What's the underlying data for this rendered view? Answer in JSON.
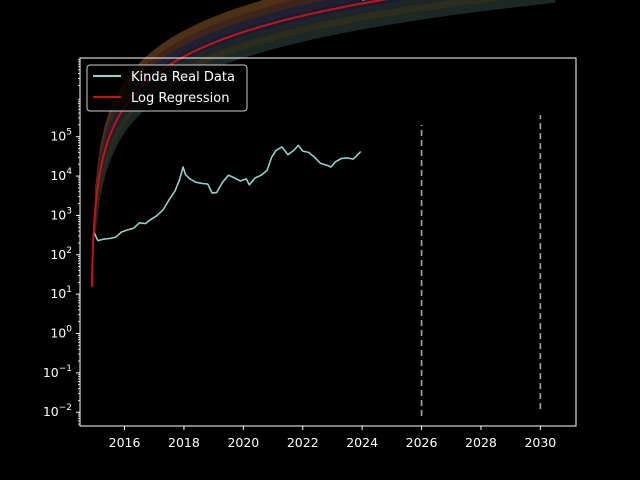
{
  "chart_data": {
    "type": "line",
    "title": "",
    "xlabel": "",
    "ylabel": "",
    "y_scale": "log",
    "xlim": [
      2014.5,
      2031.2
    ],
    "ylim_log10": [
      -2.35,
      7.0
    ],
    "grid": false,
    "legend": "upper-left",
    "background": "#000000",
    "x_ticks": [
      {
        "value": 2016,
        "label": "2016"
      },
      {
        "value": 2018,
        "label": "2018"
      },
      {
        "value": 2020,
        "label": "2020"
      },
      {
        "value": 2022,
        "label": "2022"
      },
      {
        "value": 2024,
        "label": "2024"
      },
      {
        "value": 2026,
        "label": "2026"
      },
      {
        "value": 2028,
        "label": "2028"
      },
      {
        "value": 2030,
        "label": "2030"
      }
    ],
    "y_ticks": [
      {
        "exp": -2,
        "base": "10",
        "sup": "−2"
      },
      {
        "exp": -1,
        "base": "10",
        "sup": "−1"
      },
      {
        "exp": 0,
        "base": "10",
        "sup": "0"
      },
      {
        "exp": 1,
        "base": "10",
        "sup": "1"
      },
      {
        "exp": 2,
        "base": "10",
        "sup": "2"
      },
      {
        "exp": 3,
        "base": "10",
        "sup": "3"
      },
      {
        "exp": 4,
        "base": "10",
        "sup": "4"
      },
      {
        "exp": 5,
        "base": "10",
        "sup": "5"
      }
    ],
    "vlines": [
      {
        "x": 2026,
        "ymin": 0.008,
        "ymax": 200000,
        "color": "#aaaaaa"
      },
      {
        "x": 2030,
        "ymin": 0.012,
        "ymax": 350000,
        "color": "#aaaaaa"
      }
    ],
    "series": [
      {
        "name": "Kinda Real Data",
        "color": "#8dd3c7",
        "x": [
          2014.95,
          2015.1,
          2015.3,
          2015.5,
          2015.7,
          2015.9,
          2016.1,
          2016.3,
          2016.5,
          2016.7,
          2016.9,
          2017.1,
          2017.3,
          2017.5,
          2017.7,
          2017.85,
          2017.97,
          2018.05,
          2018.2,
          2018.4,
          2018.6,
          2018.8,
          2018.95,
          2019.1,
          2019.3,
          2019.5,
          2019.7,
          2019.9,
          2020.1,
          2020.2,
          2020.4,
          2020.6,
          2020.8,
          2020.95,
          2021.1,
          2021.3,
          2021.5,
          2021.7,
          2021.85,
          2022.0,
          2022.2,
          2022.4,
          2022.6,
          2022.8,
          2022.95,
          2023.1,
          2023.3,
          2023.5,
          2023.7,
          2023.85,
          2023.95
        ],
        "y": [
          400,
          230,
          250,
          260,
          280,
          380,
          430,
          470,
          650,
          620,
          800,
          1000,
          1400,
          2500,
          4200,
          8000,
          17000,
          11000,
          8500,
          7000,
          6500,
          6300,
          3700,
          3800,
          7000,
          10500,
          9000,
          7500,
          8500,
          6000,
          9000,
          10500,
          14000,
          30000,
          45000,
          55000,
          35000,
          45000,
          60000,
          43000,
          40000,
          30000,
          21000,
          19000,
          17000,
          23000,
          28000,
          29000,
          27000,
          35000,
          42000
        ]
      },
      {
        "name": "Log Regression",
        "color": "#d01010",
        "a": 2.9,
        "b": 5.6,
        "t0": 2014.87,
        "x_range": [
          2014.9,
          2030.5
        ]
      }
    ],
    "extension": {
      "color": "#dcdcdc",
      "x_range": [
        2024.0,
        2030.5
      ],
      "a": 3.0,
      "b": 5.6,
      "t0": 2014.87
    },
    "bands": [
      {
        "lo_off": 0.45,
        "hi_off": 0.66,
        "color": "#8a5a2a",
        "opacity": 0.55
      },
      {
        "lo_off": 0.27,
        "hi_off": 0.45,
        "color": "#7a4a3a",
        "opacity": 0.5
      },
      {
        "lo_off": 0.09,
        "hi_off": 0.27,
        "color": "#3a3a5c",
        "opacity": 0.55
      },
      {
        "lo_off": -0.09,
        "hi_off": 0.09,
        "color": "#2a3a6a",
        "opacity": 0.5
      },
      {
        "lo_off": -0.27,
        "hi_off": -0.09,
        "color": "#3c4a50",
        "opacity": 0.5
      },
      {
        "lo_off": -0.45,
        "hi_off": -0.27,
        "color": "#5a5a3a",
        "opacity": 0.5
      },
      {
        "lo_off": -0.66,
        "hi_off": -0.45,
        "color": "#2f4a46",
        "opacity": 0.55
      }
    ]
  }
}
